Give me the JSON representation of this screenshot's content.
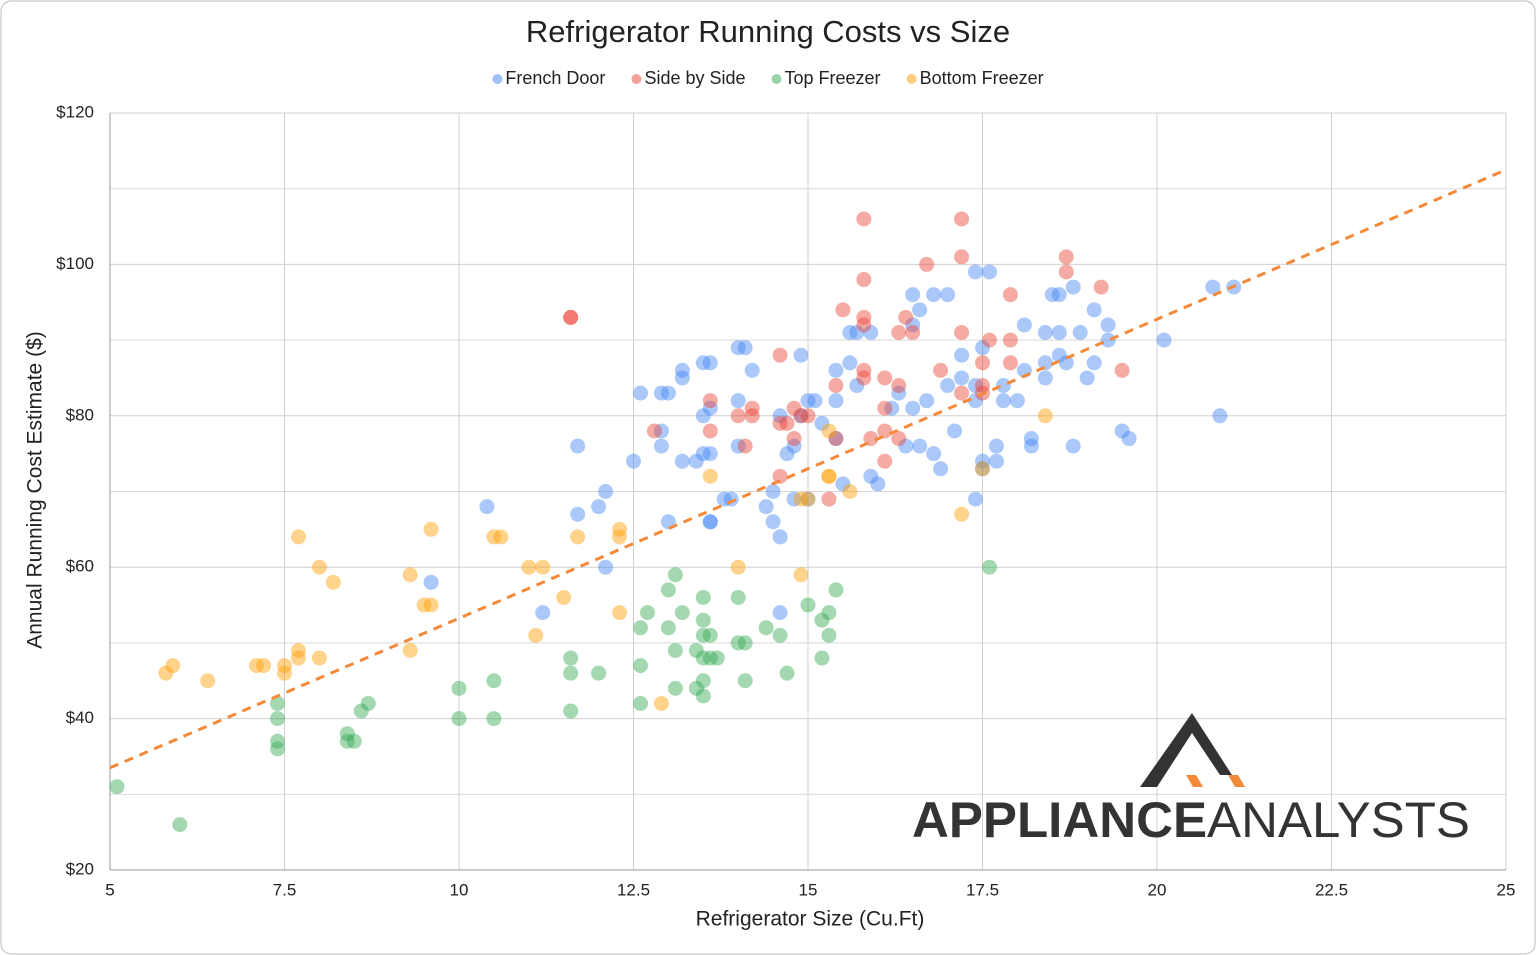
{
  "chart_data": {
    "type": "scatter",
    "title": "Refrigerator Running Costs vs Size",
    "x_label": "Refrigerator Size (Cu.Ft)",
    "y_label": "Annual Running Cost Estimate ($)",
    "xlim": [
      5,
      25
    ],
    "xticks": [
      5,
      7.5,
      10,
      12.5,
      15,
      17.5,
      20,
      22.5,
      25
    ],
    "ylim": [
      20,
      120
    ],
    "yticks": [
      {
        "value": 20,
        "label": "$20"
      },
      {
        "value": 40,
        "label": "$40"
      },
      {
        "value": 60,
        "label": "$60"
      },
      {
        "value": 80,
        "label": "$80"
      },
      {
        "value": 100,
        "label": "$100"
      },
      {
        "value": 120,
        "label": "$120"
      }
    ],
    "y_minor_grid": [
      30,
      50,
      70,
      90,
      110
    ],
    "grid": true,
    "legend": "top",
    "series": [
      {
        "name": "French Door",
        "color": "#4285f4",
        "x": [
          11.7,
          11.7,
          12.0,
          12.1,
          12.1,
          9.6,
          10.4,
          11.2,
          12.5,
          12.6,
          12.9,
          13.0,
          12.9,
          12.9,
          13.0,
          13.2,
          13.2,
          13.2,
          13.4,
          13.5,
          13.6,
          13.5,
          13.6,
          13.5,
          13.6,
          13.6,
          13.6,
          13.9,
          14.0,
          14.1,
          14.0,
          14.0,
          14.2,
          13.8,
          14.4,
          14.5,
          14.5,
          14.6,
          14.6,
          14.7,
          14.8,
          14.8,
          14.9,
          14.9,
          15.0,
          15.0,
          15.1,
          15.2,
          15.4,
          15.4,
          15.4,
          15.5,
          15.6,
          15.6,
          15.7,
          15.7,
          15.9,
          15.9,
          16.0,
          16.2,
          16.3,
          16.4,
          16.5,
          16.5,
          16.5,
          16.6,
          16.6,
          16.7,
          16.8,
          16.8,
          16.9,
          17.0,
          17.0,
          17.1,
          17.2,
          17.2,
          17.4,
          17.4,
          17.4,
          17.5,
          17.5,
          17.5,
          17.6,
          17.7,
          17.7,
          17.8,
          17.8,
          18.0,
          18.1,
          18.1,
          18.2,
          18.2,
          18.4,
          18.4,
          18.4,
          18.5,
          18.6,
          18.6,
          18.6,
          18.7,
          18.8,
          18.8,
          18.9,
          19.0,
          19.1,
          19.1,
          19.3,
          19.3,
          19.5,
          19.6,
          20.1,
          20.8,
          20.9,
          21.1,
          14.6,
          17.4
        ],
        "values": [
          76,
          67,
          68,
          70,
          60,
          58,
          68,
          54,
          74,
          83,
          83,
          83,
          78,
          76,
          66,
          86,
          85,
          74,
          74,
          87,
          87,
          80,
          81,
          75,
          75,
          66,
          66,
          69,
          89,
          89,
          82,
          76,
          86,
          69,
          68,
          70,
          66,
          64,
          80,
          75,
          76,
          69,
          88,
          80,
          82,
          69,
          82,
          79,
          86,
          82,
          77,
          71,
          91,
          87,
          91,
          84,
          91,
          72,
          71,
          81,
          83,
          76,
          96,
          92,
          81,
          94,
          76,
          82,
          96,
          75,
          73,
          96,
          84,
          78,
          88,
          85,
          99,
          82,
          84,
          89,
          74,
          73,
          99,
          76,
          74,
          84,
          82,
          82,
          86,
          92,
          77,
          76,
          91,
          87,
          85,
          96,
          96,
          91,
          88,
          87,
          97,
          76,
          91,
          85,
          94,
          87,
          92,
          90,
          78,
          77,
          90,
          97,
          80,
          97,
          54,
          69
        ]
      },
      {
        "name": "Side by Side",
        "color": "#ea4335",
        "x": [
          11.6,
          11.6,
          12.8,
          13.6,
          13.6,
          14.0,
          14.1,
          14.2,
          14.2,
          14.6,
          14.6,
          14.6,
          14.7,
          14.8,
          14.8,
          14.9,
          15.0,
          15.3,
          15.4,
          15.5,
          15.8,
          15.8,
          15.8,
          15.8,
          15.8,
          15.8,
          15.9,
          16.1,
          16.1,
          16.1,
          16.1,
          16.3,
          16.3,
          16.3,
          16.4,
          16.5,
          16.7,
          16.9,
          17.2,
          17.2,
          17.2,
          17.2,
          17.5,
          17.5,
          17.5,
          17.6,
          17.9,
          17.9,
          17.9,
          18.7,
          18.7,
          19.2,
          19.5,
          15.4
        ],
        "values": [
          93,
          93,
          78,
          82,
          78,
          80,
          76,
          81,
          80,
          88,
          79,
          72,
          79,
          81,
          77,
          80,
          80,
          69,
          77,
          94,
          106,
          98,
          93,
          92,
          86,
          85,
          77,
          85,
          81,
          78,
          74,
          91,
          84,
          77,
          93,
          91,
          100,
          86,
          106,
          101,
          91,
          83,
          87,
          84,
          83,
          90,
          96,
          90,
          87,
          101,
          99,
          97,
          86,
          84
        ]
      },
      {
        "name": "Top Freezer",
        "color": "#34a853",
        "x": [
          5.1,
          6.0,
          7.4,
          7.4,
          7.4,
          7.4,
          8.4,
          8.4,
          8.5,
          8.6,
          8.7,
          10.0,
          10.0,
          10.5,
          10.5,
          11.6,
          11.6,
          11.6,
          12.0,
          12.6,
          12.6,
          12.6,
          12.7,
          13.0,
          13.0,
          13.1,
          13.1,
          13.1,
          13.2,
          13.4,
          13.4,
          13.5,
          13.5,
          13.5,
          13.5,
          13.5,
          13.5,
          13.6,
          13.6,
          13.7,
          14.0,
          14.0,
          14.1,
          14.1,
          14.4,
          14.6,
          14.7,
          15.0,
          15.2,
          15.2,
          15.3,
          15.3,
          15.4,
          17.6
        ],
        "values": [
          31,
          26,
          42,
          40,
          37,
          36,
          38,
          37,
          37,
          41,
          42,
          44,
          40,
          45,
          40,
          48,
          46,
          41,
          46,
          52,
          47,
          42,
          54,
          57,
          52,
          59,
          49,
          44,
          54,
          49,
          44,
          56,
          53,
          51,
          48,
          45,
          43,
          51,
          48,
          48,
          56,
          50,
          50,
          45,
          52,
          51,
          46,
          55,
          53,
          48,
          54,
          51,
          57,
          60
        ]
      },
      {
        "name": "Bottom Freezer",
        "color": "#ff9d00",
        "x": [
          5.8,
          5.9,
          6.4,
          7.1,
          7.2,
          7.5,
          7.5,
          7.7,
          7.7,
          7.7,
          8.0,
          8.0,
          8.2,
          9.3,
          9.3,
          9.5,
          9.6,
          9.6,
          10.5,
          10.6,
          11.1,
          11.0,
          11.2,
          11.5,
          11.7,
          12.3,
          12.3,
          12.3,
          12.9,
          13.6,
          14.0,
          14.9,
          14.9,
          15.0,
          15.3,
          15.3,
          15.3,
          15.6,
          17.2,
          17.5,
          18.4
        ],
        "values": [
          46,
          47,
          45,
          47,
          47,
          47,
          46,
          64,
          49,
          48,
          60,
          48,
          58,
          59,
          49,
          55,
          65,
          55,
          64,
          64,
          51,
          60,
          60,
          56,
          64,
          65,
          64,
          54,
          42,
          72,
          60,
          59,
          69,
          69,
          78,
          72,
          72,
          70,
          67,
          73,
          80
        ]
      }
    ],
    "trendline": {
      "color": "#f4893a",
      "x": [
        5,
        25
      ],
      "y": [
        33.5,
        112.5
      ]
    },
    "logo_text": [
      "APPLIANCE",
      "ANALYSTS"
    ]
  }
}
